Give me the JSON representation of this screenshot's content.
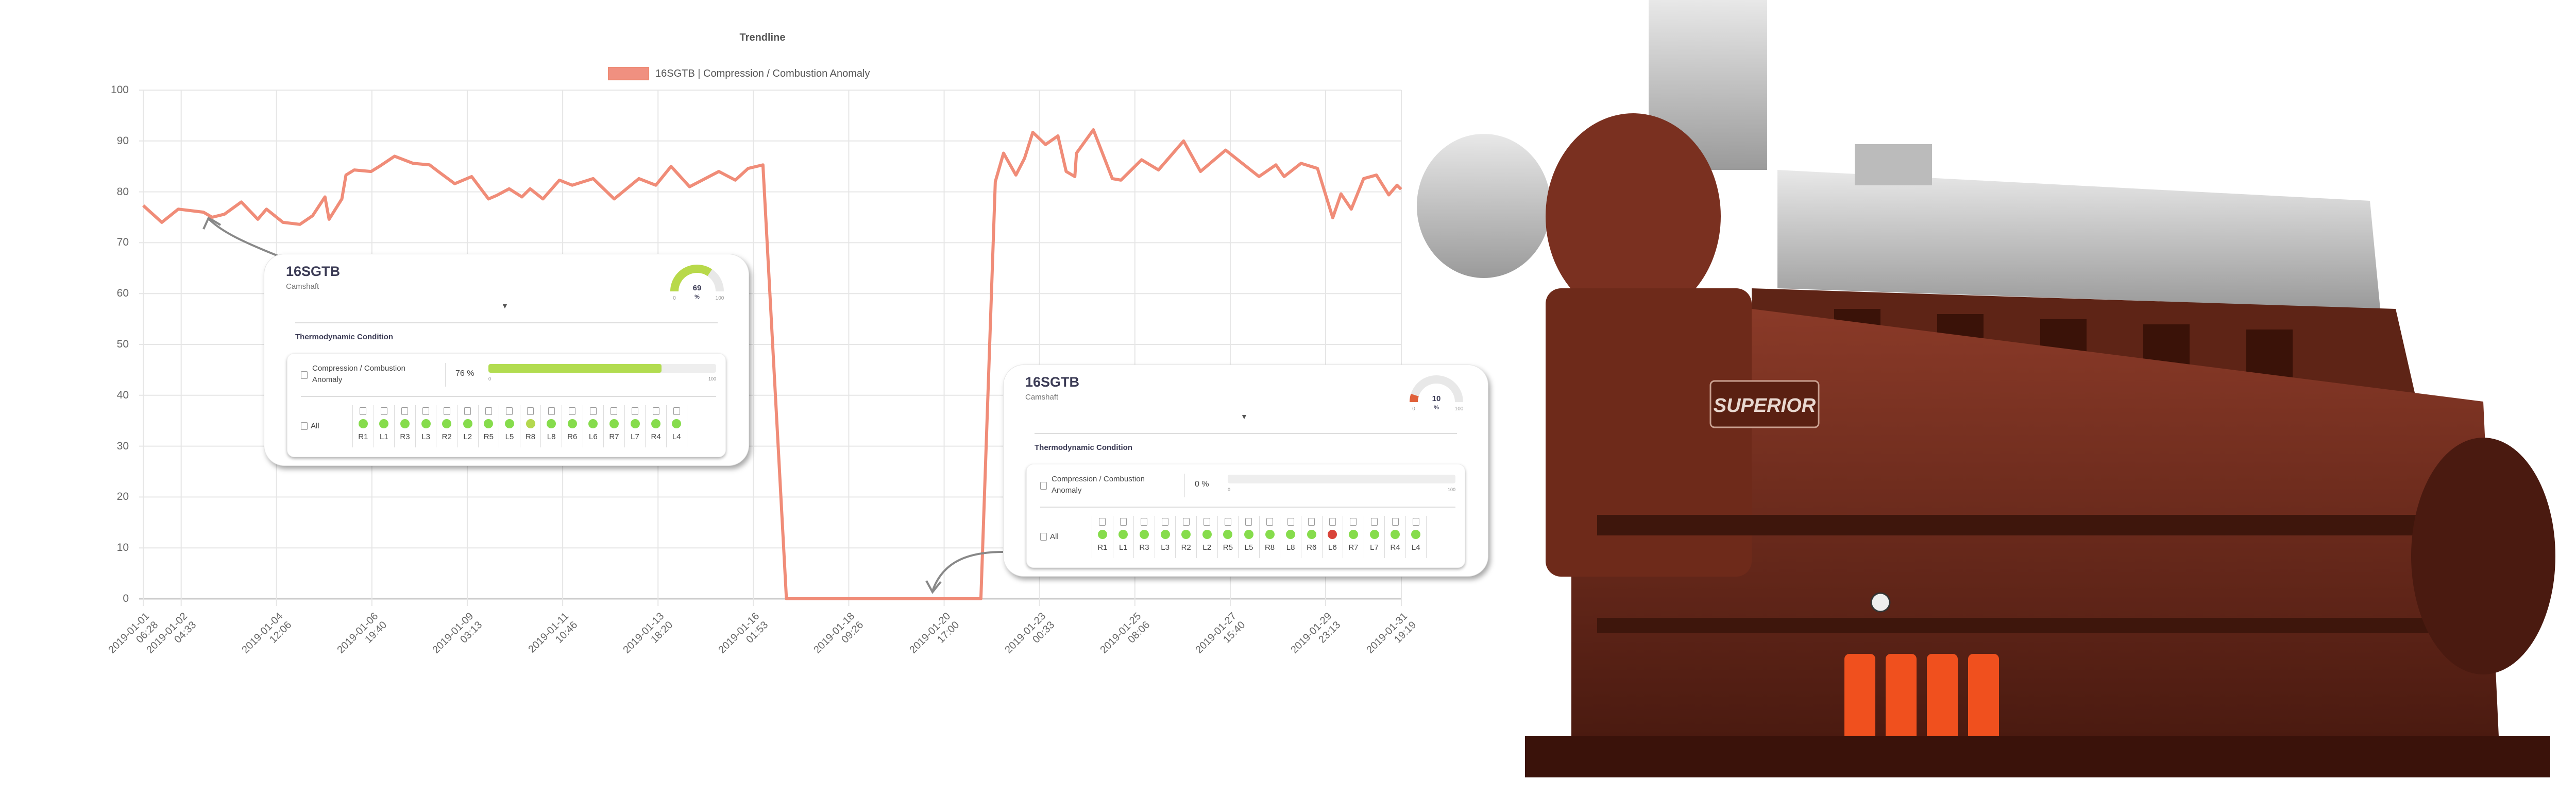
{
  "chart_data": {
    "type": "line",
    "title": "Trendline",
    "legend": [
      "16SGTB | Compression / Combustion Anomaly"
    ],
    "legend_position": "top-center",
    "series": [
      {
        "name": "16SGTB | Compression / Combustion Anomaly",
        "color": "#f08c78",
        "x_unit": "days since 2019-01-01 00:00",
        "points": [
          [
            0.27,
            77.3
          ],
          [
            0.72,
            74
          ],
          [
            1.12,
            76.6
          ],
          [
            1.73,
            76
          ],
          [
            1.94,
            75
          ],
          [
            2.24,
            75.6
          ],
          [
            2.65,
            78
          ],
          [
            3.05,
            74.6
          ],
          [
            3.26,
            76.6
          ],
          [
            3.66,
            74
          ],
          [
            4.07,
            73.6
          ],
          [
            4.38,
            75.3
          ],
          [
            4.68,
            79
          ],
          [
            4.78,
            74.6
          ],
          [
            5.09,
            78.6
          ],
          [
            5.19,
            83.3
          ],
          [
            5.39,
            84.3
          ],
          [
            5.8,
            84
          ],
          [
            6.0,
            85
          ],
          [
            6.37,
            87
          ],
          [
            6.82,
            85.6
          ],
          [
            7.22,
            85.3
          ],
          [
            7.43,
            84
          ],
          [
            7.83,
            81.6
          ],
          [
            8.24,
            83
          ],
          [
            8.65,
            78.6
          ],
          [
            8.85,
            79.3
          ],
          [
            9.15,
            80.6
          ],
          [
            9.46,
            79
          ],
          [
            9.66,
            80.6
          ],
          [
            9.97,
            78.6
          ],
          [
            10.37,
            82.3
          ],
          [
            10.68,
            81.3
          ],
          [
            11.19,
            82.6
          ],
          [
            11.7,
            78.6
          ],
          [
            12.3,
            82.6
          ],
          [
            12.71,
            81.3
          ],
          [
            13.08,
            85
          ],
          [
            13.53,
            81
          ],
          [
            14.24,
            84
          ],
          [
            14.64,
            82.3
          ],
          [
            14.95,
            84.6
          ],
          [
            15.31,
            85.3
          ],
          [
            15.88,
            0
          ],
          [
            20.6,
            0
          ],
          [
            20.95,
            82
          ],
          [
            21.15,
            87.6
          ],
          [
            21.45,
            83.3
          ],
          [
            21.66,
            86.6
          ],
          [
            21.86,
            91.7
          ],
          [
            22.17,
            89.3
          ],
          [
            22.47,
            91
          ],
          [
            22.67,
            84
          ],
          [
            22.88,
            83
          ],
          [
            22.92,
            87.6
          ],
          [
            23.33,
            92.2
          ],
          [
            23.79,
            82.6
          ],
          [
            24.0,
            82.3
          ],
          [
            24.5,
            86.3
          ],
          [
            24.91,
            84.3
          ],
          [
            25.52,
            90
          ],
          [
            25.93,
            84
          ],
          [
            26.54,
            88.2
          ],
          [
            27.35,
            83
          ],
          [
            27.76,
            85.3
          ],
          [
            27.96,
            83
          ],
          [
            28.37,
            85.6
          ],
          [
            28.77,
            84.6
          ],
          [
            29.14,
            74.9
          ],
          [
            29.34,
            79.6
          ],
          [
            29.59,
            76.6
          ],
          [
            29.89,
            82.6
          ],
          [
            30.2,
            83.3
          ],
          [
            30.5,
            79.4
          ],
          [
            30.7,
            81.3
          ],
          [
            30.8,
            80.5
          ]
        ]
      }
    ],
    "xlim": [
      0.269,
      30.805
    ],
    "ylim": [
      0,
      100
    ],
    "yticks": [
      0,
      10,
      20,
      30,
      40,
      50,
      60,
      70,
      80,
      90,
      100
    ],
    "xticks": [
      {
        "day": 0.269,
        "date": "2019-01-01",
        "time": "06:28"
      },
      {
        "day": 1.19,
        "date": "2019-01-02",
        "time": "04:33"
      },
      {
        "day": 3.504,
        "date": "2019-01-04",
        "time": "12:06"
      },
      {
        "day": 5.819,
        "date": "2019-01-06",
        "time": "19:40"
      },
      {
        "day": 8.134,
        "date": "2019-01-09",
        "time": "03:13"
      },
      {
        "day": 10.449,
        "date": "2019-01-11",
        "time": "10:46"
      },
      {
        "day": 12.764,
        "date": "2019-01-13",
        "time": "18:20"
      },
      {
        "day": 15.078,
        "date": "2019-01-16",
        "time": "01:53"
      },
      {
        "day": 17.393,
        "date": "2019-01-18",
        "time": "09:26"
      },
      {
        "day": 19.708,
        "date": "2019-01-20",
        "time": "17:00"
      },
      {
        "day": 22.023,
        "date": "2019-01-23",
        "time": "00:33"
      },
      {
        "day": 24.338,
        "date": "2019-01-25",
        "time": "08:06"
      },
      {
        "day": 26.653,
        "date": "2019-01-27",
        "time": "15:40"
      },
      {
        "day": 28.967,
        "date": "2019-01-29",
        "time": "23:13"
      },
      {
        "day": 30.805,
        "date": "2019-01-31",
        "time": "19:19"
      }
    ],
    "grid": true,
    "xlabel": "",
    "ylabel": ""
  },
  "popups": [
    {
      "title": "16SGTB",
      "subtitle": "Camshaft",
      "gauge": {
        "value": 69,
        "unit": "%",
        "min": "0",
        "max": "100",
        "color": "#b8d94a"
      },
      "section": "Thermodynamic Condition",
      "anomaly": {
        "label": "Compression / Combustion Anomaly",
        "percent_text": "76 %",
        "value": 76,
        "min": "0",
        "max": "100"
      },
      "all_label": "All",
      "cylinders": [
        {
          "name": "R1",
          "status": "ok"
        },
        {
          "name": "L1",
          "status": "ok"
        },
        {
          "name": "R3",
          "status": "ok"
        },
        {
          "name": "L3",
          "status": "ok"
        },
        {
          "name": "R2",
          "status": "ok"
        },
        {
          "name": "L2",
          "status": "ok"
        },
        {
          "name": "R5",
          "status": "ok"
        },
        {
          "name": "L5",
          "status": "ok"
        },
        {
          "name": "R8",
          "status": "warn"
        },
        {
          "name": "L8",
          "status": "ok"
        },
        {
          "name": "R6",
          "status": "ok"
        },
        {
          "name": "L6",
          "status": "ok"
        },
        {
          "name": "R7",
          "status": "ok"
        },
        {
          "name": "L7",
          "status": "ok"
        },
        {
          "name": "R4",
          "status": "ok"
        },
        {
          "name": "L4",
          "status": "ok"
        }
      ]
    },
    {
      "title": "16SGTB",
      "subtitle": "Camshaft",
      "gauge": {
        "value": 10,
        "unit": "%",
        "min": "0",
        "max": "100",
        "color": "#e0603a"
      },
      "section": "Thermodynamic Condition",
      "anomaly": {
        "label": "Compression / Combustion Anomaly",
        "percent_text": "0 %",
        "value": 0,
        "min": "0",
        "max": "100"
      },
      "all_label": "All",
      "cylinders": [
        {
          "name": "R1",
          "status": "ok"
        },
        {
          "name": "L1",
          "status": "ok"
        },
        {
          "name": "R3",
          "status": "ok"
        },
        {
          "name": "L3",
          "status": "ok"
        },
        {
          "name": "R2",
          "status": "ok"
        },
        {
          "name": "L2",
          "status": "ok"
        },
        {
          "name": "R5",
          "status": "ok"
        },
        {
          "name": "L5",
          "status": "ok"
        },
        {
          "name": "R8",
          "status": "ok"
        },
        {
          "name": "L8",
          "status": "ok"
        },
        {
          "name": "R6",
          "status": "ok"
        },
        {
          "name": "L6",
          "status": "fault"
        },
        {
          "name": "R7",
          "status": "ok"
        },
        {
          "name": "L7",
          "status": "ok"
        },
        {
          "name": "R4",
          "status": "ok"
        },
        {
          "name": "L4",
          "status": "ok"
        }
      ]
    }
  ],
  "status_colors": {
    "ok": "#86dc4c",
    "warn": "#b4d84e",
    "fault": "#d9443a"
  },
  "engine": {
    "nameplate": "SUPERIOR"
  }
}
